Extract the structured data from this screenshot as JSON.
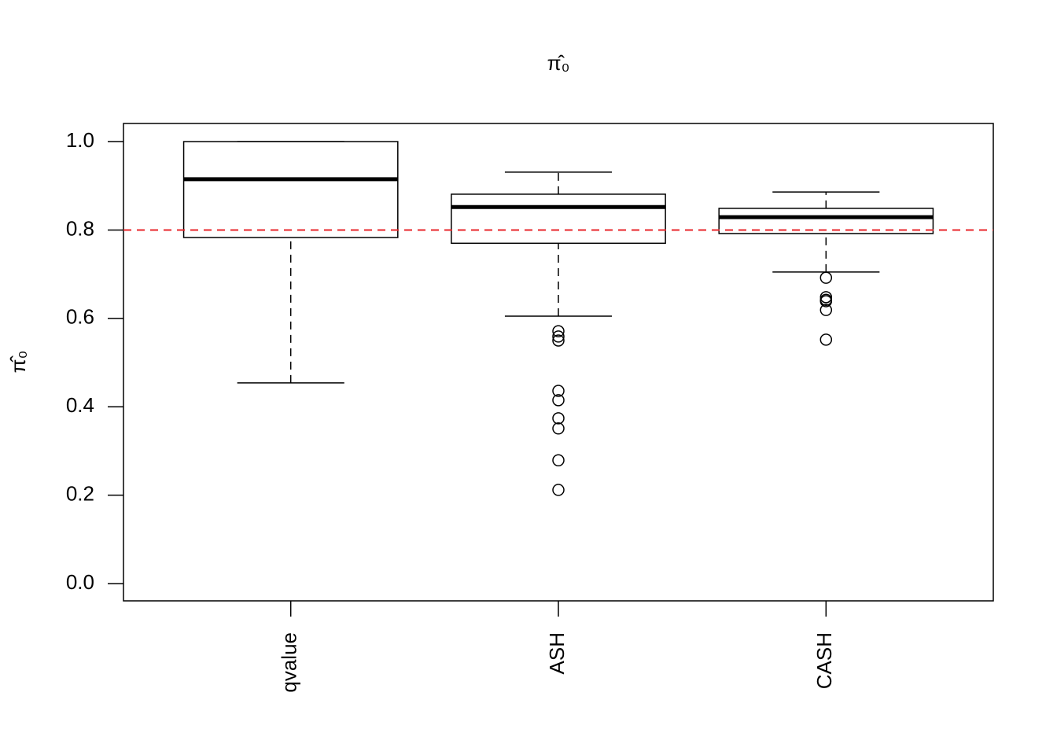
{
  "chart_data": {
    "type": "boxplot",
    "title": "π̂₀",
    "y_label": "π̂₀",
    "categories": [
      "qvalue",
      "ASH",
      "CASH"
    ],
    "boxes": [
      {
        "whisker_low": 0.454,
        "q1": 0.783,
        "median": 0.915,
        "q3": 1.0,
        "whisker_high": 1.0,
        "outliers": []
      },
      {
        "whisker_low": 0.605,
        "q1": 0.77,
        "median": 0.852,
        "q3": 0.881,
        "whisker_high": 0.931,
        "outliers": [
          0.571,
          0.559,
          0.55,
          0.436,
          0.415,
          0.374,
          0.351,
          0.279,
          0.212
        ]
      },
      {
        "whisker_low": 0.705,
        "q1": 0.792,
        "median": 0.829,
        "q3": 0.849,
        "whisker_high": 0.886,
        "outliers": [
          0.692,
          0.648,
          0.642,
          0.639,
          0.619,
          0.552
        ]
      }
    ],
    "color": "#000000",
    "reference_line": {
      "value": 0.8,
      "color": "#e8262b",
      "style": "dashed"
    },
    "ylim": [
      -0.039,
      1.041
    ],
    "yticks": [
      {
        "value": 0,
        "label": "0.0"
      },
      0.2,
      0.4,
      0.6,
      0.8,
      {
        "value": 1,
        "label": "1.0"
      }
    ],
    "grid": false
  }
}
